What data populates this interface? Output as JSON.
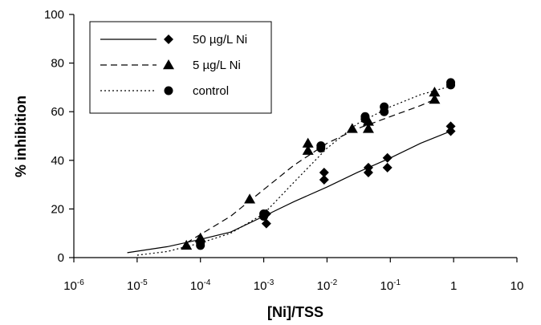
{
  "chart_data": {
    "type": "scatter",
    "xlabel": "[Ni]/TSS",
    "ylabel": "% inhibition",
    "xscale": "log",
    "xlim": [
      1e-06,
      10
    ],
    "ylim": [
      0,
      100
    ],
    "x_ticks": [
      {
        "value": 1e-06,
        "base": "10",
        "exp": "-6"
      },
      {
        "value": 1e-05,
        "base": "10",
        "exp": "-5"
      },
      {
        "value": 0.0001,
        "base": "10",
        "exp": "-4"
      },
      {
        "value": 0.001,
        "base": "10",
        "exp": "-3"
      },
      {
        "value": 0.01,
        "base": "10",
        "exp": "-2"
      },
      {
        "value": 0.1,
        "base": "10",
        "exp": "-1"
      },
      {
        "value": 1,
        "base": "1",
        "exp": ""
      },
      {
        "value": 10,
        "base": "10",
        "exp": ""
      }
    ],
    "y_ticks": [
      0,
      20,
      40,
      60,
      80,
      100
    ],
    "legend_position": "top-left",
    "series": [
      {
        "name": "50 µg/L Ni",
        "marker": "diamond",
        "line_style": "solid",
        "points": [
          {
            "x": 0.0001,
            "y": 7
          },
          {
            "x": 0.0011,
            "y": 14
          },
          {
            "x": 0.0011,
            "y": 18
          },
          {
            "x": 0.009,
            "y": 32
          },
          {
            "x": 0.009,
            "y": 35
          },
          {
            "x": 0.045,
            "y": 35
          },
          {
            "x": 0.045,
            "y": 37
          },
          {
            "x": 0.09,
            "y": 37
          },
          {
            "x": 0.09,
            "y": 41
          },
          {
            "x": 0.9,
            "y": 52
          },
          {
            "x": 0.9,
            "y": 54
          }
        ],
        "fit": [
          {
            "x": 7e-06,
            "y": 2
          },
          {
            "x": 3e-05,
            "y": 4.5
          },
          {
            "x": 0.0001,
            "y": 7.5
          },
          {
            "x": 0.0003,
            "y": 10.5
          },
          {
            "x": 0.001,
            "y": 17
          },
          {
            "x": 0.003,
            "y": 23
          },
          {
            "x": 0.01,
            "y": 29
          },
          {
            "x": 0.03,
            "y": 35
          },
          {
            "x": 0.1,
            "y": 41
          },
          {
            "x": 0.3,
            "y": 47
          },
          {
            "x": 0.9,
            "y": 52
          }
        ]
      },
      {
        "name": "5 µg/L Ni",
        "marker": "triangle",
        "line_style": "dashed",
        "points": [
          {
            "x": 6e-05,
            "y": 5
          },
          {
            "x": 0.0001,
            "y": 8
          },
          {
            "x": 0.0006,
            "y": 24
          },
          {
            "x": 0.005,
            "y": 44
          },
          {
            "x": 0.005,
            "y": 47
          },
          {
            "x": 0.025,
            "y": 53
          },
          {
            "x": 0.045,
            "y": 53
          },
          {
            "x": 0.045,
            "y": 56
          },
          {
            "x": 0.5,
            "y": 65
          },
          {
            "x": 0.5,
            "y": 68
          }
        ],
        "fit": [
          {
            "x": 6e-05,
            "y": 6
          },
          {
            "x": 0.0001,
            "y": 9.5
          },
          {
            "x": 0.0003,
            "y": 17
          },
          {
            "x": 0.001,
            "y": 28
          },
          {
            "x": 0.003,
            "y": 38
          },
          {
            "x": 0.01,
            "y": 47
          },
          {
            "x": 0.03,
            "y": 53
          },
          {
            "x": 0.1,
            "y": 58
          },
          {
            "x": 0.3,
            "y": 62.5
          },
          {
            "x": 0.5,
            "y": 65
          }
        ]
      },
      {
        "name": "control",
        "marker": "circle",
        "line_style": "dotted",
        "points": [
          {
            "x": 0.0001,
            "y": 5
          },
          {
            "x": 0.0001,
            "y": 6
          },
          {
            "x": 0.001,
            "y": 17
          },
          {
            "x": 0.001,
            "y": 18
          },
          {
            "x": 0.008,
            "y": 45
          },
          {
            "x": 0.008,
            "y": 46
          },
          {
            "x": 0.04,
            "y": 57
          },
          {
            "x": 0.04,
            "y": 58
          },
          {
            "x": 0.08,
            "y": 60
          },
          {
            "x": 0.08,
            "y": 62
          },
          {
            "x": 0.9,
            "y": 71
          },
          {
            "x": 0.9,
            "y": 72
          }
        ],
        "fit": [
          {
            "x": 1e-05,
            "y": 1
          },
          {
            "x": 3e-05,
            "y": 2.5
          },
          {
            "x": 0.0001,
            "y": 6
          },
          {
            "x": 0.0003,
            "y": 10
          },
          {
            "x": 0.001,
            "y": 18
          },
          {
            "x": 0.003,
            "y": 31
          },
          {
            "x": 0.01,
            "y": 45
          },
          {
            "x": 0.03,
            "y": 55
          },
          {
            "x": 0.1,
            "y": 62
          },
          {
            "x": 0.3,
            "y": 67
          },
          {
            "x": 0.9,
            "y": 70.5
          }
        ]
      }
    ]
  }
}
